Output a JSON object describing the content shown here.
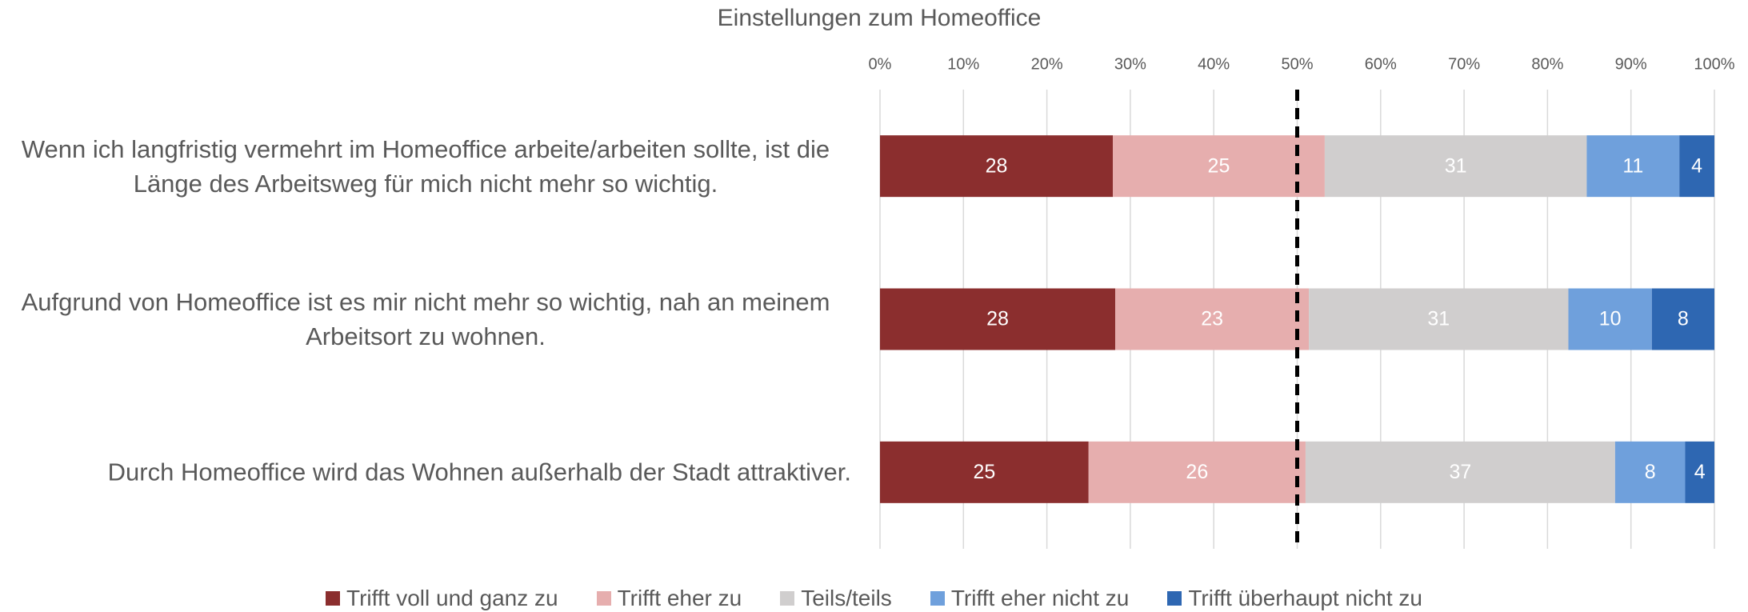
{
  "chart_data": {
    "type": "stacked_bar_horizontal",
    "title": "Einstellungen zum Homeoffice",
    "categories": [
      "Wenn ich langfristig vermehrt im Homeoffice arbeite/arbeiten sollte, ist die Länge des Arbeitsweg für mich nicht mehr so wichtig.",
      "Aufgrund von Homeoffice ist es mir nicht mehr so wichtig, nah an meinem Arbeitsort zu wohnen.",
      "Durch Homeoffice wird das Wohnen außerhalb der Stadt attraktiver."
    ],
    "series": [
      {
        "name": "Trifft voll und ganz zu",
        "color": "#8b2e2e",
        "values": [
          27.9,
          28.2,
          25.0
        ],
        "value_labels": [
          "28",
          "28",
          "25"
        ]
      },
      {
        "name": "Trifft eher zu",
        "color": "#e6aeae",
        "values": [
          25.4,
          23.2,
          26.0
        ],
        "value_labels": [
          "25",
          "23",
          "26"
        ]
      },
      {
        "name": "Teils/teils",
        "color": "#d0cece",
        "values": [
          31.4,
          31.1,
          37.1
        ],
        "value_labels": [
          "31",
          "31",
          "37"
        ]
      },
      {
        "name": "Trifft eher nicht zu",
        "color": "#6fa0dc",
        "values": [
          11.1,
          10.0,
          8.4
        ],
        "value_labels": [
          "11",
          "10",
          "8"
        ]
      },
      {
        "name": "Trifft überhaupt nicht zu",
        "color": "#2e67b2",
        "values": [
          4.2,
          7.5,
          3.5
        ],
        "value_labels": [
          "4",
          "8",
          "4"
        ]
      }
    ],
    "xlim": [
      0,
      100
    ],
    "xticks": [
      {
        "value": 0,
        "label": "0%"
      },
      {
        "value": 10,
        "label": "10%"
      },
      {
        "value": 20,
        "label": "20%"
      },
      {
        "value": 30,
        "label": "30%"
      },
      {
        "value": 40,
        "label": "40%"
      },
      {
        "value": 50,
        "label": "50%"
      },
      {
        "value": 60,
        "label": "60%"
      },
      {
        "value": 70,
        "label": "70%"
      },
      {
        "value": 80,
        "label": "80%"
      },
      {
        "value": 90,
        "label": "90%"
      },
      {
        "value": 100,
        "label": "100%"
      }
    ],
    "reference_line": 50,
    "grid": true,
    "legend": "bottom"
  }
}
